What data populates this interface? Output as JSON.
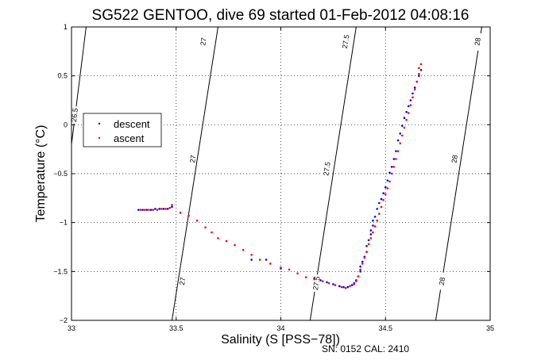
{
  "chart_data": {
    "type": "scatter",
    "title": "SG522 GENTOO, dive 69 started 01-Feb-2012 04:08:16",
    "xlabel": "Salinity (S [PSS−78])",
    "ylabel": "Temperature (°C)",
    "xlim": [
      33,
      35
    ],
    "ylim": [
      -2,
      1
    ],
    "xticks": [
      33,
      33.5,
      34,
      34.5,
      35
    ],
    "xtick_labels": [
      "33",
      "33.5",
      "34",
      "34.5",
      "35"
    ],
    "yticks": [
      -2,
      -1.5,
      -1,
      -0.5,
      0,
      0.5,
      1
    ],
    "ytick_labels": [
      "−2",
      "−1.5",
      "−1",
      "−0.5",
      "0",
      "0.5",
      "1"
    ],
    "grid": true,
    "legend_placement": "left",
    "series": [
      {
        "name": "descent",
        "color": "#0000ff",
        "points": [
          [
            33.32,
            -0.87
          ],
          [
            33.34,
            -0.87
          ],
          [
            33.36,
            -0.87
          ],
          [
            33.38,
            -0.87
          ],
          [
            33.4,
            -0.86
          ],
          [
            33.42,
            -0.86
          ],
          [
            33.44,
            -0.86
          ],
          [
            33.46,
            -0.86
          ],
          [
            33.48,
            -0.84
          ],
          [
            33.86,
            -1.38
          ],
          [
            33.93,
            -1.38
          ],
          [
            34.0,
            -1.47
          ],
          [
            34.16,
            -1.57
          ],
          [
            34.19,
            -1.59
          ],
          [
            34.22,
            -1.61
          ],
          [
            34.25,
            -1.63
          ],
          [
            34.28,
            -1.65
          ],
          [
            34.3,
            -1.66
          ],
          [
            34.32,
            -1.66
          ],
          [
            34.34,
            -1.64
          ],
          [
            34.35,
            -1.62
          ],
          [
            34.36,
            -1.59
          ],
          [
            34.37,
            -1.55
          ],
          [
            34.38,
            -1.5
          ],
          [
            34.38,
            -1.45
          ],
          [
            34.39,
            -1.4
          ],
          [
            34.4,
            -1.35
          ],
          [
            34.41,
            -1.3
          ],
          [
            34.41,
            -1.24
          ],
          [
            34.42,
            -1.18
          ],
          [
            34.43,
            -1.12
          ],
          [
            34.43,
            -1.08
          ],
          [
            34.44,
            -1.03
          ],
          [
            34.44,
            -0.98
          ],
          [
            34.45,
            -0.94
          ],
          [
            34.46,
            -0.86
          ],
          [
            34.47,
            -0.8
          ],
          [
            34.48,
            -0.76
          ],
          [
            34.49,
            -0.7
          ],
          [
            34.5,
            -0.64
          ],
          [
            34.51,
            -0.57
          ],
          [
            34.52,
            -0.49
          ],
          [
            34.53,
            -0.43
          ],
          [
            34.54,
            -0.35
          ],
          [
            34.55,
            -0.27
          ],
          [
            34.56,
            -0.16
          ],
          [
            34.57,
            -0.09
          ],
          [
            34.58,
            -0.01
          ],
          [
            34.59,
            0.07
          ],
          [
            34.6,
            0.13
          ],
          [
            34.61,
            0.19
          ],
          [
            34.62,
            0.25
          ],
          [
            34.63,
            0.32
          ],
          [
            34.64,
            0.38
          ],
          [
            34.65,
            0.44
          ],
          [
            34.66,
            0.5
          ],
          [
            34.67,
            0.56
          ]
        ]
      },
      {
        "name": "ascent",
        "color": "#ff0000",
        "points": [
          [
            33.33,
            -0.87
          ],
          [
            33.35,
            -0.87
          ],
          [
            33.37,
            -0.87
          ],
          [
            33.39,
            -0.87
          ],
          [
            33.41,
            -0.87
          ],
          [
            33.43,
            -0.86
          ],
          [
            33.45,
            -0.86
          ],
          [
            33.47,
            -0.85
          ],
          [
            33.48,
            -0.82
          ],
          [
            33.52,
            -0.9
          ],
          [
            33.56,
            -0.93
          ],
          [
            33.6,
            -0.98
          ],
          [
            33.64,
            -1.05
          ],
          [
            33.67,
            -1.1
          ],
          [
            33.7,
            -1.16
          ],
          [
            33.74,
            -1.19
          ],
          [
            33.78,
            -1.23
          ],
          [
            33.82,
            -1.28
          ],
          [
            33.86,
            -1.33
          ],
          [
            33.9,
            -1.38
          ],
          [
            33.95,
            -1.42
          ],
          [
            34.0,
            -1.46
          ],
          [
            34.04,
            -1.48
          ],
          [
            34.08,
            -1.52
          ],
          [
            34.12,
            -1.56
          ],
          [
            34.16,
            -1.58
          ],
          [
            34.2,
            -1.6
          ],
          [
            34.23,
            -1.62
          ],
          [
            34.26,
            -1.64
          ],
          [
            34.29,
            -1.66
          ],
          [
            34.31,
            -1.67
          ],
          [
            34.33,
            -1.65
          ],
          [
            34.35,
            -1.63
          ],
          [
            34.36,
            -1.6
          ],
          [
            34.37,
            -1.55
          ],
          [
            34.38,
            -1.48
          ],
          [
            34.39,
            -1.42
          ],
          [
            34.4,
            -1.36
          ],
          [
            34.41,
            -1.3
          ],
          [
            34.42,
            -1.22
          ],
          [
            34.43,
            -1.16
          ],
          [
            34.44,
            -1.1
          ],
          [
            34.45,
            -1.04
          ],
          [
            34.46,
            -0.98
          ],
          [
            34.47,
            -0.91
          ],
          [
            34.48,
            -0.84
          ],
          [
            34.49,
            -0.77
          ],
          [
            34.5,
            -0.71
          ],
          [
            34.51,
            -0.65
          ],
          [
            34.52,
            -0.58
          ],
          [
            34.53,
            -0.5
          ],
          [
            34.54,
            -0.43
          ],
          [
            34.55,
            -0.35
          ],
          [
            34.56,
            -0.27
          ],
          [
            34.57,
            -0.19
          ],
          [
            34.58,
            -0.11
          ],
          [
            34.59,
            -0.03
          ],
          [
            34.6,
            0.05
          ],
          [
            34.61,
            0.12
          ],
          [
            34.62,
            0.2
          ],
          [
            34.63,
            0.28
          ],
          [
            34.64,
            0.36
          ],
          [
            34.65,
            0.44
          ],
          [
            34.66,
            0.52
          ],
          [
            34.66,
            0.58
          ],
          [
            34.67,
            0.62
          ]
        ]
      }
    ],
    "contours": [
      {
        "label": "26.5",
        "segment": [
          [
            33.0,
            -0.2
          ],
          [
            33.07,
            1.0
          ]
        ],
        "label_at": [
          33.015,
          0.1
        ]
      },
      {
        "label": "27",
        "segment": [
          [
            33.48,
            -2.0
          ],
          [
            33.7,
            1.0
          ]
        ],
        "label_at": [
          33.63,
          0.85
        ]
      },
      {
        "label": "27",
        "segment": [
          [
            33.48,
            -2.0
          ],
          [
            33.7,
            1.0
          ]
        ],
        "label_at": [
          33.58,
          -0.35
        ]
      },
      {
        "label": "27",
        "segment": [
          [
            33.48,
            -2.0
          ],
          [
            33.7,
            1.0
          ]
        ],
        "label_at": [
          33.53,
          -1.6
        ]
      },
      {
        "label": "27.5",
        "segment": [
          [
            34.14,
            -2.0
          ],
          [
            34.36,
            1.0
          ]
        ],
        "label_at": [
          34.31,
          0.85
        ]
      },
      {
        "label": "27.5",
        "segment": [
          [
            34.14,
            -2.0
          ],
          [
            34.36,
            1.0
          ]
        ],
        "label_at": [
          34.22,
          -0.45
        ]
      },
      {
        "label": "27.5",
        "segment": [
          [
            34.14,
            -2.0
          ],
          [
            34.36,
            1.0
          ]
        ],
        "label_at": [
          34.17,
          -1.62
        ]
      },
      {
        "label": "28",
        "segment": [
          [
            34.74,
            -2.0
          ],
          [
            34.96,
            1.0
          ]
        ],
        "label_at": [
          34.94,
          0.85
        ]
      },
      {
        "label": "28",
        "segment": [
          [
            34.74,
            -2.0
          ],
          [
            34.96,
            1.0
          ]
        ],
        "label_at": [
          34.83,
          -0.35
        ]
      },
      {
        "label": "28",
        "segment": [
          [
            34.74,
            -2.0
          ],
          [
            34.96,
            1.0
          ]
        ],
        "label_at": [
          34.77,
          -1.6
        ]
      }
    ]
  },
  "footer": {
    "serial": "SN: 0152  CAL: 2410"
  }
}
